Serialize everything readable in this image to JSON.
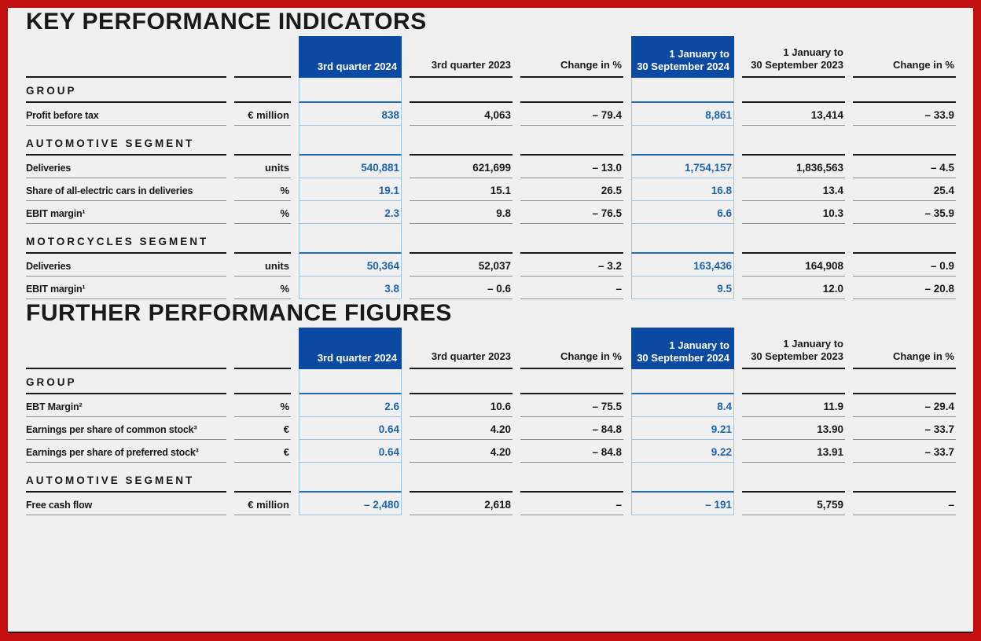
{
  "page": {
    "background": "#f0f0f0",
    "frame_color": "#c40f11",
    "colors": {
      "header_box_blue": "#0b4aa2",
      "value_blue": "#1e63ae",
      "line_blue_strong": "#1b6cb5",
      "line_blue_light": "#9cc6e6",
      "ink": "#191919",
      "line_gray": "#8e8e8e"
    }
  },
  "tables": [
    {
      "title": "KEY PERFORMANCE INDICATORS",
      "columns": [
        {
          "label": "3rd quarter 2024",
          "highlight": true
        },
        {
          "label": "3rd quarter 2023",
          "highlight": false
        },
        {
          "label": "Change in %",
          "highlight": false
        },
        {
          "label": "1 January to\n30 September 2024",
          "highlight": true
        },
        {
          "label": "1 January to\n30 September 2023",
          "highlight": false
        },
        {
          "label": "Change in %",
          "highlight": false
        }
      ],
      "rows": [
        {
          "type": "section",
          "label": "GROUP"
        },
        {
          "type": "data",
          "label": "Profit before tax",
          "unit": "€ million",
          "values": [
            "838",
            "4,063",
            "– 79.4",
            "8,861",
            "13,414",
            "– 33.9"
          ]
        },
        {
          "type": "section",
          "label": "AUTOMOTIVE SEGMENT"
        },
        {
          "type": "data",
          "label": "Deliveries",
          "unit": "units",
          "values": [
            "540,881",
            "621,699",
            "– 13.0",
            "1,754,157",
            "1,836,563",
            "– 4.5"
          ]
        },
        {
          "type": "data",
          "label": "Share of all-electric cars in deliveries",
          "unit": "%",
          "values": [
            "19.1",
            "15.1",
            "26.5",
            "16.8",
            "13.4",
            "25.4"
          ]
        },
        {
          "type": "data",
          "label": "EBIT margin¹",
          "unit": "%",
          "values": [
            "2.3",
            "9.8",
            "– 76.5",
            "6.6",
            "10.3",
            "– 35.9"
          ]
        },
        {
          "type": "section",
          "label": "MOTORCYCLES SEGMENT"
        },
        {
          "type": "data",
          "label": "Deliveries",
          "unit": "units",
          "values": [
            "50,364",
            "52,037",
            "– 3.2",
            "163,436",
            "164,908",
            "– 0.9"
          ]
        },
        {
          "type": "data",
          "label": "EBIT margin¹",
          "unit": "%",
          "values": [
            "3.8",
            "– 0.6",
            "–",
            "9.5",
            "12.0",
            "– 20.8"
          ]
        }
      ]
    },
    {
      "title": "FURTHER PERFORMANCE FIGURES",
      "columns": [
        {
          "label": "3rd quarter 2024",
          "highlight": true
        },
        {
          "label": "3rd quarter 2023",
          "highlight": false
        },
        {
          "label": "Change in %",
          "highlight": false
        },
        {
          "label": "1 January to\n30 September 2024",
          "highlight": true
        },
        {
          "label": "1 January to\n30 September 2023",
          "highlight": false
        },
        {
          "label": "Change in %",
          "highlight": false
        }
      ],
      "rows": [
        {
          "type": "section",
          "label": "GROUP"
        },
        {
          "type": "data",
          "label": "EBT Margin²",
          "unit": "%",
          "values": [
            "2.6",
            "10.6",
            "– 75.5",
            "8.4",
            "11.9",
            "– 29.4"
          ]
        },
        {
          "type": "data",
          "label": "Earnings per share of common stock³",
          "unit": "€",
          "values": [
            "0.64",
            "4.20",
            "– 84.8",
            "9.21",
            "13.90",
            "– 33.7"
          ]
        },
        {
          "type": "data",
          "label": "Earnings per share of preferred stock³",
          "unit": "€",
          "values": [
            "0.64",
            "4.20",
            "– 84.8",
            "9.22",
            "13.91",
            "– 33.7"
          ]
        },
        {
          "type": "section",
          "label": "AUTOMOTIVE SEGMENT"
        },
        {
          "type": "data",
          "label": "Free cash flow",
          "unit": "€ million",
          "values": [
            "– 2,480",
            "2,618",
            "–",
            "– 191",
            "5,759",
            "–"
          ]
        }
      ]
    }
  ]
}
